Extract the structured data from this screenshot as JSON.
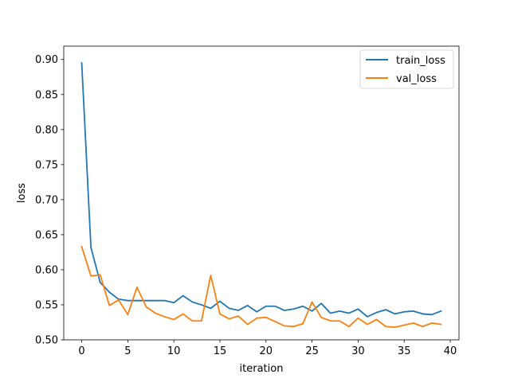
{
  "chart_data": {
    "type": "line",
    "title": "",
    "xlabel": "iteration",
    "ylabel": "loss",
    "xlim": [
      -1.95,
      40.95
    ],
    "ylim": [
      0.5,
      0.919
    ],
    "x_ticks": [
      0,
      5,
      10,
      15,
      20,
      25,
      30,
      35,
      40
    ],
    "y_ticks": [
      0.5,
      0.55,
      0.6,
      0.65,
      0.7,
      0.75,
      0.8,
      0.85,
      0.9
    ],
    "x_tick_labels": [
      "0",
      "5",
      "10",
      "15",
      "20",
      "25",
      "30",
      "35",
      "40"
    ],
    "y_tick_labels": [
      "0.50",
      "0.55",
      "0.60",
      "0.65",
      "0.70",
      "0.75",
      "0.80",
      "0.85",
      "0.90"
    ],
    "grid": false,
    "legend_position": "top-right",
    "x": [
      0,
      1,
      2,
      3,
      4,
      5,
      6,
      7,
      8,
      9,
      10,
      11,
      12,
      13,
      14,
      15,
      16,
      17,
      18,
      19,
      20,
      21,
      22,
      23,
      24,
      25,
      26,
      27,
      28,
      29,
      30,
      31,
      32,
      33,
      34,
      35,
      36,
      37,
      38,
      39
    ],
    "series": [
      {
        "name": "train_loss",
        "color": "#1f77b4",
        "values": [
          0.895,
          0.632,
          0.582,
          0.568,
          0.558,
          0.556,
          0.556,
          0.556,
          0.556,
          0.556,
          0.553,
          0.563,
          0.554,
          0.55,
          0.545,
          0.555,
          0.545,
          0.542,
          0.549,
          0.54,
          0.548,
          0.548,
          0.542,
          0.544,
          0.548,
          0.541,
          0.552,
          0.538,
          0.541,
          0.538,
          0.544,
          0.533,
          0.539,
          0.543,
          0.537,
          0.54,
          0.541,
          0.537,
          0.536,
          0.541
        ]
      },
      {
        "name": "val_loss",
        "color": "#ff7f0e",
        "values": [
          0.633,
          0.591,
          0.593,
          0.549,
          0.557,
          0.536,
          0.575,
          0.547,
          0.538,
          0.533,
          0.529,
          0.537,
          0.527,
          0.527,
          0.592,
          0.537,
          0.53,
          0.534,
          0.522,
          0.531,
          0.532,
          0.526,
          0.52,
          0.519,
          0.523,
          0.554,
          0.532,
          0.527,
          0.527,
          0.519,
          0.531,
          0.522,
          0.529,
          0.519,
          0.518,
          0.521,
          0.524,
          0.519,
          0.524,
          0.522
        ]
      }
    ]
  }
}
